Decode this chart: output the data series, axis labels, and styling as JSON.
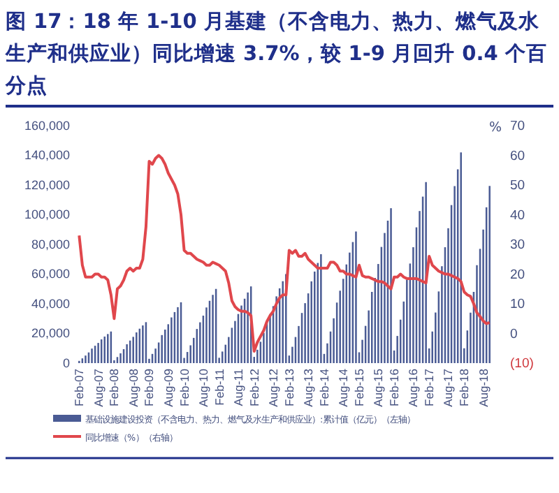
{
  "chart_data": {
    "type": "bar",
    "title": "图 17：18 年 1-10 月基建（不含电力、热力、燃气及水生产和供应业）同比增速 3.7%，较 1-9 月回升 0.4 个百分点",
    "y2label": "%",
    "categories": [
      "Feb-07",
      null,
      null,
      null,
      null,
      null,
      "Aug-07",
      null,
      null,
      null,
      null,
      "Feb-08",
      null,
      null,
      null,
      null,
      null,
      "Aug-08",
      null,
      null,
      null,
      null,
      "Feb-09",
      null,
      null,
      null,
      null,
      null,
      "Aug-09",
      null,
      null,
      null,
      null,
      "Feb-10",
      null,
      null,
      null,
      null,
      null,
      "Aug-10",
      null,
      null,
      null,
      null,
      "Feb-11",
      null,
      null,
      null,
      null,
      null,
      "Aug-11",
      null,
      null,
      null,
      null,
      "Feb-12",
      null,
      null,
      null,
      null,
      null,
      "Aug-12",
      null,
      null,
      null,
      null,
      "Feb-13",
      null,
      null,
      null,
      null,
      null,
      "Aug-13",
      null,
      null,
      null,
      null,
      "Feb-14",
      null,
      null,
      null,
      null,
      null,
      "Aug-14",
      null,
      null,
      null,
      null,
      "Feb-15",
      null,
      null,
      null,
      null,
      null,
      "Aug-15",
      null,
      null,
      null,
      null,
      "Feb-16",
      null,
      null,
      null,
      null,
      null,
      "Aug-16",
      null,
      null,
      null,
      null,
      "Feb-17",
      null,
      null,
      null,
      null,
      null,
      "Aug-17",
      null,
      null,
      null,
      null,
      "Feb-18",
      null,
      null,
      null,
      null,
      null,
      "Aug-18",
      null,
      null
    ],
    "series": [
      {
        "name": "基础设施建设投资（不含电力、热力、燃气及水生产和供应业）:累计值（亿元）（左轴）",
        "color": "#4a5b94",
        "values": [
          1500,
          3200,
          5100,
          7200,
          9800,
          11700,
          13600,
          16000,
          17900,
          19600,
          21300,
          1900,
          4100,
          6600,
          9400,
          12700,
          15200,
          17700,
          20700,
          23200,
          25400,
          27600,
          2900,
          6200,
          9800,
          13900,
          18900,
          22600,
          26200,
          30800,
          34400,
          37700,
          41000,
          3500,
          7500,
          12000,
          17000,
          23000,
          27500,
          32000,
          37500,
          42000,
          46000,
          50000,
          3600,
          7800,
          12400,
          17600,
          23800,
          28400,
          33100,
          38800,
          43400,
          47600,
          51700,
          4200,
          9000,
          14400,
          20400,
          27600,
          33000,
          38400,
          45000,
          50400,
          55200,
          60000,
          5100,
          11000,
          17600,
          25000,
          33800,
          40400,
          47000,
          55100,
          61700,
          67500,
          73400,
          6200,
          13300,
          21300,
          30200,
          40800,
          48800,
          56800,
          66500,
          74500,
          81600,
          88700,
          7300,
          15700,
          25100,
          35500,
          48000,
          57400,
          66800,
          78300,
          87700,
          96000,
          104400,
          8500,
          18300,
          29300,
          41500,
          56100,
          67100,
          78100,
          91500,
          102500,
          112200,
          122000,
          9900,
          21300,
          34100,
          48300,
          65300,
          78100,
          90900,
          106500,
          119300,
          130600,
          142000,
          10000,
          22000,
          34000,
          48000,
          66000,
          77000,
          90000,
          105000,
          119400
        ]
      },
      {
        "name": "同比增速（%）（右轴）",
        "type": "line",
        "axis": "y2",
        "color": "#e0474c",
        "values": [
          33,
          23,
          19,
          19,
          19,
          20,
          20,
          19,
          19,
          18,
          13,
          5,
          15,
          16,
          18,
          21,
          22,
          21,
          22,
          22,
          25,
          36,
          58,
          57,
          59,
          60,
          59,
          57,
          54,
          52,
          50,
          47,
          40,
          28,
          27,
          27,
          26,
          25,
          24.5,
          24,
          23,
          23,
          24,
          23.5,
          23,
          22,
          21,
          17,
          11,
          9,
          8,
          7.5,
          7.5,
          7,
          6,
          -6,
          -3,
          -1,
          1,
          4,
          6,
          7.5,
          10,
          12,
          13,
          13,
          28,
          27,
          28,
          26,
          26,
          27,
          25,
          24,
          23,
          22,
          22,
          22,
          22,
          24,
          24,
          23,
          21,
          21,
          20,
          20,
          19.5,
          19,
          23,
          19.5,
          19,
          19,
          18.5,
          18,
          17.5,
          17.5,
          17,
          16,
          15,
          19,
          19,
          20,
          19,
          18.5,
          18.5,
          18.5,
          18.5,
          18,
          17.5,
          17,
          26,
          23,
          22,
          21,
          20.5,
          20,
          20,
          19.5,
          19,
          18.5,
          17.5,
          14,
          13,
          12.5,
          10,
          7,
          5.7,
          4.2,
          3.3,
          3.7
        ]
      }
    ],
    "ylim": [
      0,
      160000
    ],
    "yticks": [
      {
        "value": 0,
        "label": "0"
      },
      {
        "value": 20000,
        "label": "20,000"
      },
      {
        "value": 40000,
        "label": "40,000"
      },
      {
        "value": 60000,
        "label": "60,000"
      },
      {
        "value": 80000,
        "label": "80,000"
      },
      {
        "value": 100000,
        "label": "100,000"
      },
      {
        "value": 120000,
        "label": "120,000"
      },
      {
        "value": 140000,
        "label": "140,000"
      },
      {
        "value": 160000,
        "label": "160,000"
      }
    ],
    "y2lim": [
      -10,
      70
    ],
    "y2ticks": [
      {
        "value": -10,
        "label": "(10)"
      },
      0,
      10,
      20,
      30,
      40,
      50,
      60,
      70
    ],
    "legend": "bottom",
    "grid": false,
    "marker": "none",
    "line_style": "solid"
  }
}
